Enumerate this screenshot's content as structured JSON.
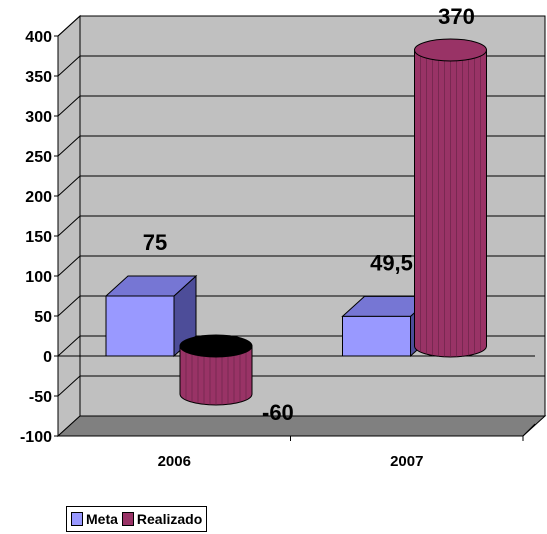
{
  "chart_data": {
    "type": "bar",
    "categories": [
      "2006",
      "2007"
    ],
    "series": [
      {
        "name": "Meta",
        "values": [
          75,
          49.5
        ],
        "labels": [
          "75",
          "49,5"
        ]
      },
      {
        "name": "Realizado",
        "values": [
          -60,
          370
        ],
        "labels": [
          "-60",
          "370"
        ]
      }
    ],
    "yticks": [
      "400",
      "350",
      "300",
      "250",
      "200",
      "150",
      "100",
      "50",
      "0",
      "-50",
      "-100"
    ],
    "ylim": [
      -100,
      400
    ],
    "grid": true,
    "legend_position": "bottom-left",
    "colors": {
      "Meta": "#9999ff",
      "Meta_side": "#4d4d99",
      "Meta_top": "#7676d4",
      "Realizado": "#993366",
      "Realizado_dark": "#5e1f3f",
      "plot_wall": "#c0c0c0",
      "floor": "#808080"
    }
  }
}
